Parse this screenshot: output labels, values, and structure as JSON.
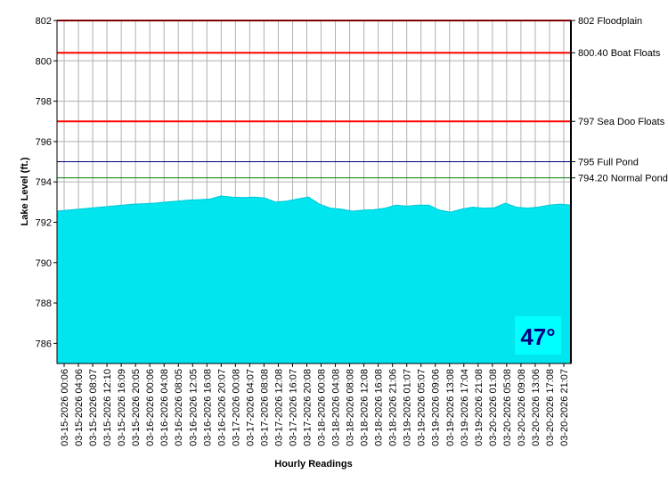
{
  "chart_data": {
    "type": "area",
    "xlabel": "Hourly Readings",
    "ylabel": "Lake Level (ft.)",
    "ylim": [
      785,
      802
    ],
    "y_ticks": [
      786,
      788,
      790,
      792,
      794,
      796,
      798,
      800,
      802
    ],
    "grid": true,
    "fill_color": "#00e5ee",
    "x_tick_labels": [
      "03-15-2026 00:06",
      "03-15-2026 04:06",
      "03-15-2026 08:07",
      "03-15-2026 12:10",
      "03-15-2026 16:09",
      "03-15-2026 20:05",
      "03-16-2026 00:06",
      "03-16-2026 04:08",
      "03-16-2026 08:05",
      "03-16-2026 12:05",
      "03-16-2026 16:08",
      "03-16-2026 20:07",
      "03-17-2026 00:08",
      "03-17-2026 04:07",
      "03-17-2026 08:08",
      "03-17-2026 12:08",
      "03-17-2026 16:07",
      "03-17-2026 20:08",
      "03-18-2026 00:08",
      "03-18-2026 04:08",
      "03-18-2026 08:08",
      "03-18-2026 12:08",
      "03-18-2026 16:08",
      "03-18-2026 21:06",
      "03-19-2026 01:07",
      "03-19-2026 05:07",
      "03-19-2026 09:06",
      "03-19-2026 13:08",
      "03-19-2026 17:04",
      "03-19-2026 21:08",
      "03-20-2026 01:08",
      "03-20-2026 05:08",
      "03-20-2026 09:08",
      "03-20-2026 13:06",
      "03-20-2026 17:08",
      "03-20-2026 21:07"
    ],
    "values": [
      792.55,
      792.6,
      792.65,
      792.7,
      792.75,
      792.8,
      792.85,
      792.9,
      792.92,
      792.95,
      793.0,
      793.05,
      793.1,
      793.12,
      793.15,
      793.3,
      793.25,
      793.22,
      793.25,
      793.2,
      793.0,
      793.05,
      793.15,
      793.25,
      792.9,
      792.7,
      792.65,
      792.55,
      792.6,
      792.62,
      792.7,
      792.85,
      792.8,
      792.85,
      792.85,
      792.6,
      792.5,
      792.65,
      792.75,
      792.7,
      792.72,
      792.95,
      792.75,
      792.7,
      792.75,
      792.85,
      792.9,
      792.85
    ],
    "reference_lines": [
      {
        "value": 802,
        "label": "802 Floodplain",
        "color": "#ff0000"
      },
      {
        "value": 800.4,
        "label": "800.40 Boat Floats",
        "color": "#ff0000"
      },
      {
        "value": 797,
        "label": "797 Sea Doo Floats",
        "color": "#ff0000"
      },
      {
        "value": 795,
        "label": "795 Full Pond",
        "color": "#000080"
      },
      {
        "value": 794.2,
        "label": "794.20 Normal Pond",
        "color": "#008000"
      }
    ]
  },
  "temperature": {
    "text": "47°",
    "background": "#00ffff",
    "color": "#000080"
  }
}
